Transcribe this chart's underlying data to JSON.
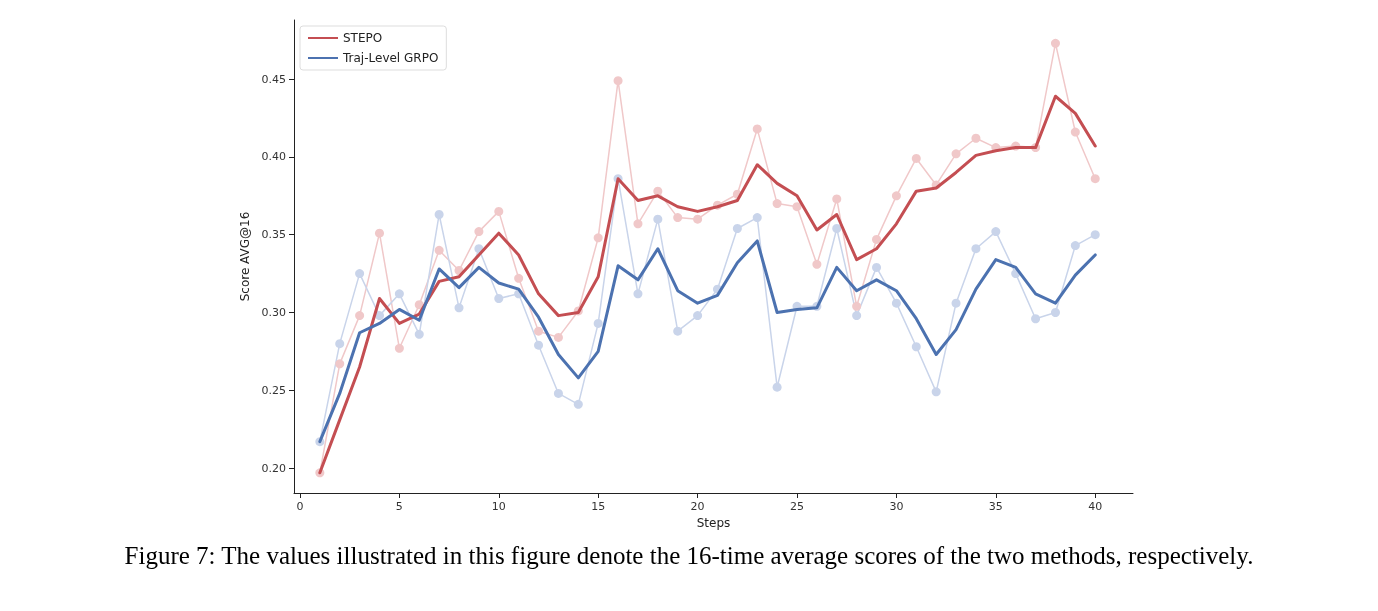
{
  "chart_data": {
    "type": "line",
    "xlabel": "Steps",
    "ylabel": "Score AVG@16",
    "x": [
      1,
      2,
      3,
      4,
      5,
      6,
      7,
      8,
      9,
      10,
      11,
      12,
      13,
      14,
      15,
      16,
      17,
      18,
      19,
      20,
      21,
      22,
      23,
      24,
      25,
      26,
      27,
      28,
      29,
      30,
      31,
      32,
      33,
      34,
      35,
      36,
      37,
      38,
      39,
      40
    ],
    "series": [
      {
        "color": "#f0c8c9",
        "marker": "circle",
        "values": [
          0.197,
          0.267,
          0.298,
          0.351,
          0.277,
          0.305,
          0.34,
          0.327,
          0.352,
          0.365,
          0.322,
          0.288,
          0.284,
          0.301,
          0.348,
          0.449,
          0.357,
          0.378,
          0.361,
          0.36,
          0.369,
          0.376,
          0.418,
          0.37,
          0.368,
          0.331,
          0.373,
          0.304,
          0.347,
          0.375,
          0.399,
          0.382,
          0.402,
          0.412,
          0.406,
          0.407,
          0.406,
          0.473,
          0.416,
          0.386
        ]
      },
      {
        "color": "#c9d4ea",
        "marker": "circle",
        "values": [
          0.217,
          0.28,
          0.325,
          0.298,
          0.312,
          0.286,
          0.363,
          0.303,
          0.341,
          0.309,
          0.312,
          0.279,
          0.248,
          0.241,
          0.293,
          0.386,
          0.312,
          0.36,
          0.288,
          0.298,
          0.315,
          0.354,
          0.361,
          0.252,
          0.304,
          0.304,
          0.354,
          0.298,
          0.329,
          0.306,
          0.278,
          0.249,
          0.306,
          0.341,
          0.352,
          0.325,
          0.296,
          0.3,
          0.343,
          0.35
        ]
      },
      {
        "name": "STEPO",
        "color": "#c44e52",
        "marker": "none",
        "values": [
          0.197,
          0.231,
          0.265,
          0.309,
          0.293,
          0.299,
          0.32,
          0.323,
          0.337,
          0.351,
          0.337,
          0.312,
          0.298,
          0.3,
          0.323,
          0.386,
          0.372,
          0.375,
          0.368,
          0.365,
          0.368,
          0.372,
          0.395,
          0.383,
          0.375,
          0.353,
          0.363,
          0.334,
          0.341,
          0.357,
          0.378,
          0.38,
          0.39,
          0.401,
          0.404,
          0.406,
          0.406,
          0.439,
          0.428,
          0.407
        ]
      },
      {
        "name": "Traj-Level GRPO",
        "color": "#4c72b0",
        "marker": "none",
        "values": [
          0.217,
          0.248,
          0.287,
          0.293,
          0.302,
          0.295,
          0.328,
          0.316,
          0.329,
          0.319,
          0.315,
          0.297,
          0.273,
          0.258,
          0.275,
          0.33,
          0.321,
          0.341,
          0.314,
          0.306,
          0.311,
          0.332,
          0.346,
          0.3,
          0.302,
          0.303,
          0.329,
          0.314,
          0.321,
          0.314,
          0.296,
          0.273,
          0.289,
          0.315,
          0.334,
          0.329,
          0.312,
          0.306,
          0.324,
          0.337
        ]
      }
    ],
    "xlim": [
      -0.3,
      41.9
    ],
    "xticks": [
      0,
      5,
      10,
      15,
      20,
      25,
      30,
      35,
      40
    ],
    "ylim": [
      0.184,
      0.488
    ],
    "yticks": [
      {
        "value": 0.2,
        "label": "0.20"
      },
      {
        "value": 0.25,
        "label": "0.25"
      },
      {
        "value": 0.3,
        "label": "0.30"
      },
      {
        "value": 0.35,
        "label": "0.35"
      },
      {
        "value": 0.4,
        "label": "0.40"
      },
      {
        "value": 0.45,
        "label": "0.45"
      }
    ],
    "grid": false,
    "legend": "top left",
    "line_style": "solid",
    "annotations": [
      "Figure 7: The values illustrated in this figure denote the 16-time average scores of the two methods, respectively."
    ]
  }
}
